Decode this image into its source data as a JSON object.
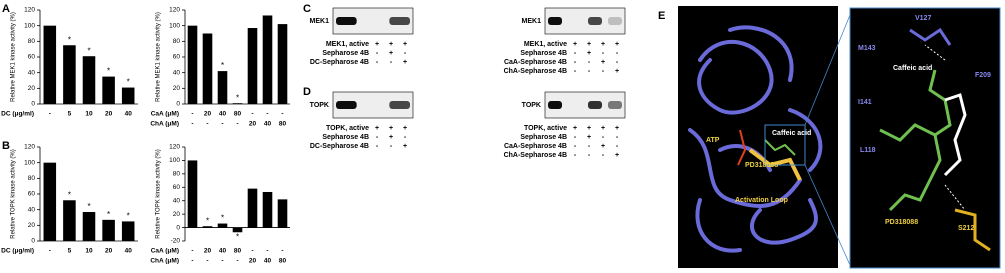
{
  "panel_labels": [
    "A",
    "B",
    "C",
    "D",
    "E"
  ],
  "chart_data": [
    {
      "type": "bar",
      "y_label": "Relative MEK1 kinase activity (%)",
      "color": "#000000",
      "categories": [
        "-",
        "5",
        "10",
        "20",
        "40"
      ],
      "category_rows": [
        {
          "name": "DC (μg/ml)",
          "labels": [
            "-",
            "5",
            "10",
            "20",
            "40"
          ]
        }
      ],
      "values": [
        100,
        75,
        61,
        35,
        21
      ],
      "marks": [
        null,
        "*",
        "*",
        "*",
        "*"
      ],
      "ylim": [
        0,
        120
      ],
      "yticks": [
        0,
        20,
        40,
        60,
        80,
        100,
        120
      ]
    },
    {
      "type": "bar",
      "y_label": "Relative MEK1 kinase activity (%)",
      "color": "#000000",
      "categories": [
        null,
        null,
        null,
        null,
        null,
        null,
        null
      ],
      "category_rows": [
        {
          "name": "CaA (μM)",
          "labels": [
            "-",
            "20",
            "40",
            "80",
            "-",
            "-",
            "-"
          ]
        },
        {
          "name": "ChA (μM)",
          "labels": [
            "-",
            "-",
            "-",
            "-",
            "20",
            "40",
            "80"
          ]
        }
      ],
      "values": [
        100,
        90,
        42,
        1,
        97,
        113,
        102
      ],
      "marks": [
        null,
        null,
        "*",
        "*",
        null,
        null,
        null
      ],
      "ylim": [
        0,
        120
      ],
      "yticks": [
        0,
        20,
        40,
        60,
        80,
        100,
        120
      ]
    },
    {
      "type": "bar",
      "y_label": "Relative TOPK kinase activity (%)",
      "color": "#000000",
      "categories": [
        "-",
        "5",
        "10",
        "20",
        "40"
      ],
      "category_rows": [
        {
          "name": "DC (μg/ml)",
          "labels": [
            "-",
            "5",
            "10",
            "20",
            "40"
          ]
        }
      ],
      "values": [
        100,
        52,
        37,
        27,
        25
      ],
      "marks": [
        null,
        "*",
        "*",
        "*",
        "*"
      ],
      "ylim": [
        0,
        120
      ],
      "yticks": [
        0,
        20,
        40,
        60,
        80,
        100,
        120
      ]
    },
    {
      "type": "bar",
      "y_label": "Relative TOPK kinase activity (%)",
      "color": "#000000",
      "categories": [
        null,
        null,
        null,
        null,
        null,
        null,
        null
      ],
      "category_rows": [
        {
          "name": "CaA (μM)",
          "labels": [
            "-",
            "20",
            "40",
            "80",
            "-",
            "-",
            "-"
          ]
        },
        {
          "name": "ChA (μM)",
          "labels": [
            "-",
            "-",
            "-",
            "-",
            "20",
            "40",
            "80"
          ]
        }
      ],
      "values": [
        100,
        2,
        6,
        -7,
        58,
        53,
        42
      ],
      "marks": [
        null,
        "*",
        "*",
        "*",
        null,
        null,
        null
      ],
      "ylim": [
        -20,
        120
      ],
      "yticks": [
        -20,
        0,
        20,
        40,
        60,
        80,
        100,
        120
      ]
    }
  ],
  "blots": [
    {
      "target": "MEK1",
      "rows": [
        {
          "label": "MEK1, active",
          "signs": [
            "+",
            "+",
            "+"
          ]
        },
        {
          "label": "Sepharose 4B",
          "signs": [
            "-",
            "+",
            "-"
          ]
        },
        {
          "label": "DC-Sepharose 4B",
          "signs": [
            "-",
            "-",
            "+"
          ]
        }
      ]
    },
    {
      "target": "MEK1",
      "rows": [
        {
          "label": "MEK1, active",
          "signs": [
            "+",
            "+",
            "+",
            "+"
          ]
        },
        {
          "label": "Sepharose 4B",
          "signs": [
            "-",
            "+",
            "-",
            "-"
          ]
        },
        {
          "label": "CaA-Sepharose 4B",
          "signs": [
            "-",
            "-",
            "+",
            "-"
          ]
        },
        {
          "label": "ChA-Sepharose 4B",
          "signs": [
            "-",
            "-",
            "-",
            "+"
          ]
        }
      ]
    },
    {
      "target": "TOPK",
      "rows": [
        {
          "label": "TOPK, active",
          "signs": [
            "+",
            "+",
            "+"
          ]
        },
        {
          "label": "Sepharose 4B",
          "signs": [
            "-",
            "+",
            "-"
          ]
        },
        {
          "label": "DC-Sepharose 4B",
          "signs": [
            "-",
            "-",
            "+"
          ]
        }
      ]
    },
    {
      "target": "TOPK",
      "rows": [
        {
          "label": "TOPK, active",
          "signs": [
            "+",
            "+",
            "+",
            "+"
          ]
        },
        {
          "label": "Sepharose 4B",
          "signs": [
            "-",
            "+",
            "-",
            "-"
          ]
        },
        {
          "label": "CaA-Sepharose 4B",
          "signs": [
            "-",
            "-",
            "+",
            "-"
          ]
        },
        {
          "label": "ChA-Sepharose 4B",
          "signs": [
            "-",
            "-",
            "-",
            "+"
          ]
        }
      ]
    }
  ],
  "structure": {
    "labels": [
      "ATP",
      "Caffeic acid",
      "PD318088",
      "Activation Loop"
    ],
    "inset_labels": [
      "V127",
      "M143",
      "Caffeic acid",
      "F209",
      "I141",
      "L118",
      "PD318088",
      "S212"
    ]
  }
}
